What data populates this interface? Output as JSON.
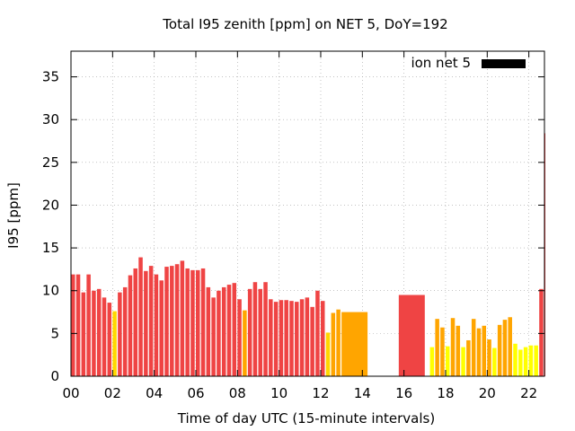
{
  "chart_data": {
    "type": "bar",
    "title": "Total I95 zenith [ppm] on NET 5, DoY=192",
    "xlabel": "Time of day UTC (15-minute intervals)",
    "ylabel": "I95 [ppm]",
    "xlim": [
      0,
      22.75
    ],
    "ylim": [
      0,
      38
    ],
    "xticks": [
      "00",
      "02",
      "04",
      "06",
      "08",
      "10",
      "12",
      "14",
      "16",
      "18",
      "20",
      "22"
    ],
    "yticks": [
      "0",
      "5",
      "10",
      "15",
      "20",
      "25",
      "30",
      "35"
    ],
    "grid": true,
    "legend": {
      "label": "ion net 5",
      "color": "#000000",
      "position": "top-right"
    },
    "colors": {
      "red": "#ef4444",
      "orange": "#ffa500",
      "yellow": "#ffff00",
      "gold": "#ffd700"
    },
    "bars": [
      {
        "x": 0.0,
        "y": 11.9,
        "c": "red"
      },
      {
        "x": 0.25,
        "y": 11.9,
        "c": "red"
      },
      {
        "x": 0.5,
        "y": 9.8,
        "c": "red"
      },
      {
        "x": 0.75,
        "y": 11.9,
        "c": "red"
      },
      {
        "x": 1.0,
        "y": 10.0,
        "c": "red"
      },
      {
        "x": 1.25,
        "y": 10.2,
        "c": "red"
      },
      {
        "x": 1.5,
        "y": 9.2,
        "c": "red"
      },
      {
        "x": 1.75,
        "y": 8.6,
        "c": "red"
      },
      {
        "x": 2.0,
        "y": 7.6,
        "c": "gold"
      },
      {
        "x": 2.25,
        "y": 9.8,
        "c": "red"
      },
      {
        "x": 2.5,
        "y": 10.4,
        "c": "red"
      },
      {
        "x": 2.75,
        "y": 11.8,
        "c": "red"
      },
      {
        "x": 3.0,
        "y": 12.6,
        "c": "red"
      },
      {
        "x": 3.25,
        "y": 13.9,
        "c": "red"
      },
      {
        "x": 3.5,
        "y": 12.3,
        "c": "red"
      },
      {
        "x": 3.75,
        "y": 12.9,
        "c": "red"
      },
      {
        "x": 4.0,
        "y": 11.9,
        "c": "red"
      },
      {
        "x": 4.25,
        "y": 11.2,
        "c": "red"
      },
      {
        "x": 4.5,
        "y": 12.8,
        "c": "red"
      },
      {
        "x": 4.75,
        "y": 12.9,
        "c": "red"
      },
      {
        "x": 5.0,
        "y": 13.1,
        "c": "red"
      },
      {
        "x": 5.25,
        "y": 13.5,
        "c": "red"
      },
      {
        "x": 5.5,
        "y": 12.6,
        "c": "red"
      },
      {
        "x": 5.75,
        "y": 12.4,
        "c": "red"
      },
      {
        "x": 6.0,
        "y": 12.4,
        "c": "red"
      },
      {
        "x": 6.25,
        "y": 12.6,
        "c": "red"
      },
      {
        "x": 6.5,
        "y": 10.4,
        "c": "red"
      },
      {
        "x": 6.75,
        "y": 9.2,
        "c": "red"
      },
      {
        "x": 7.0,
        "y": 10.0,
        "c": "red"
      },
      {
        "x": 7.25,
        "y": 10.4,
        "c": "red"
      },
      {
        "x": 7.5,
        "y": 10.7,
        "c": "red"
      },
      {
        "x": 7.75,
        "y": 10.9,
        "c": "red"
      },
      {
        "x": 8.0,
        "y": 9.0,
        "c": "red"
      },
      {
        "x": 8.25,
        "y": 7.7,
        "c": "orange"
      },
      {
        "x": 8.5,
        "y": 10.2,
        "c": "red"
      },
      {
        "x": 8.75,
        "y": 11.0,
        "c": "red"
      },
      {
        "x": 9.0,
        "y": 10.2,
        "c": "red"
      },
      {
        "x": 9.25,
        "y": 11.0,
        "c": "red"
      },
      {
        "x": 9.5,
        "y": 9.0,
        "c": "red"
      },
      {
        "x": 9.75,
        "y": 8.7,
        "c": "red"
      },
      {
        "x": 10.0,
        "y": 8.9,
        "c": "red"
      },
      {
        "x": 10.25,
        "y": 8.9,
        "c": "red"
      },
      {
        "x": 10.5,
        "y": 8.8,
        "c": "red"
      },
      {
        "x": 10.75,
        "y": 8.7,
        "c": "red"
      },
      {
        "x": 11.0,
        "y": 9.0,
        "c": "red"
      },
      {
        "x": 11.25,
        "y": 9.2,
        "c": "red"
      },
      {
        "x": 11.5,
        "y": 8.1,
        "c": "red"
      },
      {
        "x": 11.75,
        "y": 10.0,
        "c": "red"
      },
      {
        "x": 12.0,
        "y": 8.8,
        "c": "red"
      },
      {
        "x": 12.25,
        "y": 5.1,
        "c": "gold"
      },
      {
        "x": 12.5,
        "y": 7.4,
        "c": "orange"
      },
      {
        "x": 12.75,
        "y": 7.8,
        "c": "orange"
      },
      {
        "x": 13.0,
        "y": 7.5,
        "c": "orange",
        "w": 1.25
      },
      {
        "x": 15.75,
        "y": 9.5,
        "c": "red",
        "w": 1.25
      },
      {
        "x": 17.25,
        "y": 3.4,
        "c": "yellow"
      },
      {
        "x": 17.5,
        "y": 6.7,
        "c": "orange"
      },
      {
        "x": 17.75,
        "y": 5.7,
        "c": "orange"
      },
      {
        "x": 18.0,
        "y": 3.5,
        "c": "yellow"
      },
      {
        "x": 18.25,
        "y": 6.8,
        "c": "orange"
      },
      {
        "x": 18.5,
        "y": 5.9,
        "c": "orange"
      },
      {
        "x": 18.75,
        "y": 3.4,
        "c": "yellow"
      },
      {
        "x": 19.0,
        "y": 4.2,
        "c": "orange"
      },
      {
        "x": 19.25,
        "y": 6.7,
        "c": "orange"
      },
      {
        "x": 19.5,
        "y": 5.6,
        "c": "orange"
      },
      {
        "x": 19.75,
        "y": 5.9,
        "c": "orange"
      },
      {
        "x": 20.0,
        "y": 4.3,
        "c": "orange"
      },
      {
        "x": 20.25,
        "y": 3.3,
        "c": "yellow"
      },
      {
        "x": 20.5,
        "y": 6.0,
        "c": "orange"
      },
      {
        "x": 20.75,
        "y": 6.6,
        "c": "orange"
      },
      {
        "x": 21.0,
        "y": 6.9,
        "c": "orange"
      },
      {
        "x": 21.25,
        "y": 3.8,
        "c": "yellow"
      },
      {
        "x": 21.5,
        "y": 3.1,
        "c": "yellow"
      },
      {
        "x": 21.75,
        "y": 3.4,
        "c": "yellow"
      },
      {
        "x": 22.0,
        "y": 3.6,
        "c": "yellow"
      },
      {
        "x": 22.25,
        "y": 3.6,
        "c": "yellow"
      },
      {
        "x": 22.5,
        "y": 10.2,
        "c": "red"
      },
      {
        "x": 22.75,
        "y": 28.4,
        "c": "red"
      }
    ]
  }
}
